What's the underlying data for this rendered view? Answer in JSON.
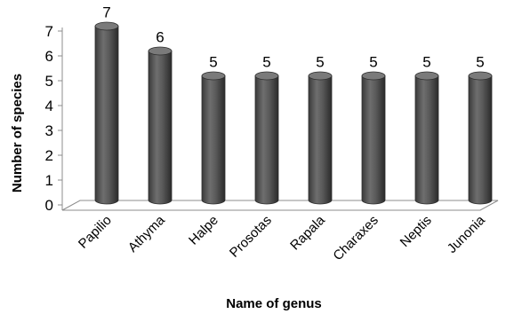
{
  "chart_data": {
    "type": "bar",
    "style": "3d-cylinder",
    "categories": [
      "Papilio",
      "Athyma",
      "Halpe",
      "Prosotas",
      "Rapala",
      "Charaxes",
      "Neptis",
      "Junonia"
    ],
    "values": [
      7,
      6,
      5,
      5,
      5,
      5,
      5,
      5
    ],
    "xlabel": "Name of genus",
    "ylabel": "Number of species",
    "ylim": [
      0,
      7
    ],
    "yticks": [
      0,
      1,
      2,
      3,
      4,
      5,
      6,
      7
    ],
    "data_labels": true,
    "colors": {
      "bar": "#5a5a5a",
      "bar_dark": "#2e2e2e",
      "bar_top": "#7a7a7a",
      "floor": "#ffffff",
      "axis": "#8c8c8c"
    }
  }
}
